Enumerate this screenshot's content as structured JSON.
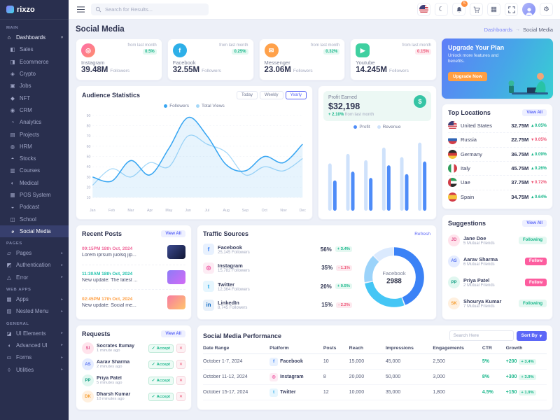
{
  "brand": {
    "logo": "rixzo"
  },
  "topbar": {
    "search_placeholder": "Search for Results...",
    "bell_badge": "5"
  },
  "sidebar": {
    "sections": {
      "main": "MAIN",
      "pages": "PAGES",
      "webapps": "WEB APPS",
      "general": "GENERAL"
    },
    "dashboards": {
      "label": "Dashboards",
      "icon": "home",
      "chev": "▾"
    },
    "dashboard_children": [
      {
        "label": "Sales",
        "icon": "sales"
      },
      {
        "label": "Ecommerce",
        "icon": "ecommerce"
      },
      {
        "label": "Crypto",
        "icon": "crypto"
      },
      {
        "label": "Jobs",
        "icon": "jobs"
      },
      {
        "label": "NFT",
        "icon": "nft"
      },
      {
        "label": "CRM",
        "icon": "crm"
      },
      {
        "label": "Analytics",
        "icon": "analytics"
      },
      {
        "label": "Projects",
        "icon": "projects"
      },
      {
        "label": "HRM",
        "icon": "hrm"
      },
      {
        "label": "Stocks",
        "icon": "stocks"
      },
      {
        "label": "Courses",
        "icon": "courses"
      },
      {
        "label": "Medical",
        "icon": "medical"
      },
      {
        "label": "POS System",
        "icon": "pos"
      },
      {
        "label": "Podcast",
        "icon": "podcast"
      },
      {
        "label": "School",
        "icon": "school"
      },
      {
        "label": "Social Media",
        "icon": "social",
        "cls": "active"
      }
    ],
    "pages_items": [
      {
        "label": "Pages",
        "icon": "pages",
        "chev": "▸"
      },
      {
        "label": "Authentication",
        "icon": "auth",
        "chev": "▸"
      },
      {
        "label": "Error",
        "icon": "error",
        "chev": "▸"
      }
    ],
    "webapps_items": [
      {
        "label": "Apps",
        "icon": "apps",
        "chev": "▸"
      },
      {
        "label": "Nested Menu",
        "icon": "nested",
        "chev": "▸"
      }
    ],
    "general_items": [
      {
        "label": "UI Elements",
        "icon": "ui",
        "chev": "▸"
      },
      {
        "label": "Advanced UI",
        "icon": "advui",
        "chev": "▸"
      },
      {
        "label": "Forms",
        "icon": "forms",
        "chev": "▸"
      },
      {
        "label": "Utilities",
        "icon": "utilities",
        "chev": "▸"
      }
    ]
  },
  "page": {
    "title": "Social Media",
    "breadcrumb_parent": "Dashboards",
    "breadcrumb_sep": "→",
    "breadcrumb_current": "Social Media"
  },
  "stats": [
    {
      "platform": "Instagram",
      "key": "instagram",
      "value": "39.48M",
      "unit": "Followers",
      "note": "from last month",
      "badge": "0.5%",
      "dir": "up"
    },
    {
      "platform": "Facebook",
      "key": "facebook",
      "value": "32.55M",
      "unit": "Followers",
      "note": "from last month",
      "badge": "0.25%",
      "dir": "up"
    },
    {
      "platform": "Messenger",
      "key": "messenger",
      "value": "23.06M",
      "unit": "Followers",
      "note": "from last month",
      "badge": "0.32%",
      "dir": "up"
    },
    {
      "platform": "Youtube",
      "key": "youtube",
      "value": "14.245M",
      "unit": "Followers",
      "note": "from last month",
      "badge": "0.15%",
      "dir": "down"
    }
  ],
  "upgrade": {
    "title": "Upgrade Your Plan",
    "subtitle": "Unlock more features and benefits.",
    "button": "Upgrade Now"
  },
  "audience": {
    "title": "Audience Statistics",
    "tabs": [
      {
        "label": "Today"
      },
      {
        "label": "Weekly"
      },
      {
        "label": "Yearly",
        "cls": "active"
      }
    ]
  },
  "profit": {
    "title": "Profit Earned",
    "amount": "$32,198",
    "badge": "+ 2.10%",
    "note": "from last month",
    "icon": "dollar"
  },
  "locations": {
    "title": "Top Locations",
    "action": "View All",
    "rows": [
      {
        "country": "United States",
        "cc": "fl-us",
        "value": "32.75M",
        "badge": "0.05%",
        "dir": "up"
      },
      {
        "country": "Russia",
        "cc": "fl-ru",
        "value": "22.75M",
        "badge": "0.05%",
        "dir": "down"
      },
      {
        "country": "Germany",
        "cc": "fl-de",
        "value": "36.75M",
        "badge": "0.09%",
        "dir": "up"
      },
      {
        "country": "Italy",
        "cc": "fl-it",
        "value": "45.75M",
        "badge": "0.26%",
        "dir": "up"
      },
      {
        "country": "Uae",
        "cc": "fl-ae",
        "value": "37.75M",
        "badge": "0.72%",
        "dir": "down"
      },
      {
        "country": "Spain",
        "cc": "fl-es",
        "value": "34.75M",
        "badge": "0.64%",
        "dir": "up"
      }
    ]
  },
  "recent_posts": {
    "title": "Recent Posts",
    "action": "View All",
    "items": [
      {
        "time": "09:15PM 18th Oct, 2024",
        "text": "Lorem iprsum juolsq jip...",
        "tcls": "t-pink",
        "th": "th1"
      },
      {
        "time": "11:30AM 18th Oct, 2024",
        "text": "New update: The latest ...",
        "tcls": "t-teal",
        "th": "th2"
      },
      {
        "time": "02:45PM 17th Oct, 2024",
        "text": "New update: Social me...",
        "tcls": "t-orange",
        "th": "th3"
      }
    ]
  },
  "traffic": {
    "title": "Traffic Sources",
    "action": "Refresh",
    "rows": [
      {
        "name": "Facebook",
        "key": "facebook",
        "followers": "25,145 Followers",
        "percent": "56%",
        "badge": "+ 3.4%",
        "dir": "up"
      },
      {
        "name": "Instagram",
        "key": "instagram",
        "followers": "15,782 Followers",
        "percent": "35%",
        "badge": "- 1.1%",
        "dir": "down"
      },
      {
        "name": "Twitter",
        "key": "twitter",
        "followers": "12,364 Followers",
        "percent": "20%",
        "badge": "+ 0.5%",
        "dir": "up"
      },
      {
        "name": "LinkedIn",
        "key": "linkedin",
        "followers": "8,745 Followers",
        "percent": "15%",
        "badge": "- 2.2%",
        "dir": "down"
      }
    ]
  },
  "suggestions": {
    "title": "Suggestions",
    "action": "View All",
    "people": [
      {
        "name": "Jane Doe",
        "friends": "5 Mutual Friends",
        "action": "Following",
        "style": "light"
      },
      {
        "name": "Aarav Sharma",
        "friends": "6 Mutual Friends",
        "action": "Follow",
        "style": "solid"
      },
      {
        "name": "Priya Patel",
        "friends": "2 Mutual Friends",
        "action": "Follow",
        "style": "solid"
      },
      {
        "name": "Shourya Kumar",
        "friends": "7 Mutual Friends",
        "action": "Following",
        "style": "light"
      }
    ]
  },
  "requests": {
    "title": "Requests",
    "action": "View All",
    "accept_label": "Accept",
    "accept_icon": "check",
    "delete_icon": "trash",
    "people": [
      {
        "name": "Socrates Itumay",
        "time": "1 minute ago"
      },
      {
        "name": "Aarav Sharma",
        "time": "2 minutes ago"
      },
      {
        "name": "Priya Patel",
        "time": "5 minutes ago"
      },
      {
        "name": "Dharsh Kumar",
        "time": "10 minutes ago"
      }
    ]
  },
  "performance": {
    "title": "Social Media Performance",
    "search_placeholder": "Search Here",
    "sort_label": "Sort By",
    "sort_caret": "▾",
    "columns": [
      "Date Range",
      "Platform",
      "Posts",
      "Reach",
      "Impressions",
      "Engagements",
      "CTR",
      "Growth"
    ],
    "rows": [
      {
        "date": "October 1-7, 2024",
        "platform": "Facebook",
        "key": "facebook",
        "posts": "10",
        "reach": "15,000",
        "impressions": "45,000",
        "engagements": "2,500",
        "ctr": "5%",
        "growth": "+200",
        "badge": "+ 3.4%"
      },
      {
        "date": "October 11-12, 2024",
        "platform": "Instagram",
        "key": "instagram",
        "posts": "8",
        "reach": "20,000",
        "impressions": "50,000",
        "engagements": "3,000",
        "ctr": "8%",
        "growth": "+300",
        "badge": "+ 3.9%"
      },
      {
        "date": "October 15-17, 2024",
        "platform": "Twitter",
        "key": "twitter",
        "posts": "12",
        "reach": "10,000",
        "impressions": "35,000",
        "engagements": "1,800",
        "ctr": "4.5%",
        "growth": "+150",
        "badge": "+ 1.9%"
      }
    ]
  },
  "chart_data": [
    {
      "type": "line",
      "title": "Audience Statistics",
      "x": [
        "Jan",
        "Feb",
        "Mar",
        "Apr",
        "May",
        "Jun",
        "Jul",
        "Aug",
        "Sep",
        "Oct",
        "Nov",
        "Dec"
      ],
      "series": [
        {
          "name": "Followers",
          "values": [
            30,
            26,
            46,
            32,
            58,
            88,
            70,
            42,
            36,
            50,
            44,
            62
          ]
        },
        {
          "name": "Total Views",
          "values": [
            22,
            38,
            30,
            44,
            40,
            70,
            62,
            54,
            32,
            40,
            36,
            48
          ]
        }
      ],
      "ylim": [
        10,
        90
      ],
      "grid": true,
      "legend_position": "top"
    },
    {
      "type": "bar",
      "title": "Profit Earned",
      "categories": [
        "1",
        "2",
        "3",
        "4",
        "5",
        "6"
      ],
      "series": [
        {
          "name": "Profit",
          "values": [
            48,
            62,
            52,
            72,
            58,
            78
          ]
        },
        {
          "name": "Revenue",
          "values": [
            75,
            90,
            80,
            100,
            85,
            108
          ]
        }
      ],
      "ylim": [
        0,
        115
      ],
      "legend_position": "top"
    },
    {
      "type": "pie",
      "title": "Traffic Sources",
      "center_label": "Facebook",
      "center_value": "2988",
      "slices": [
        {
          "label": "Facebook",
          "value": 56,
          "color": "#3b82f6"
        },
        {
          "label": "Instagram",
          "value": 35,
          "color": "#45c6f5"
        },
        {
          "label": "Twitter",
          "value": 20,
          "color": "#9bd3fa"
        },
        {
          "label": "LinkedIn",
          "value": 15,
          "color": "#dbeafe"
        }
      ]
    }
  ]
}
